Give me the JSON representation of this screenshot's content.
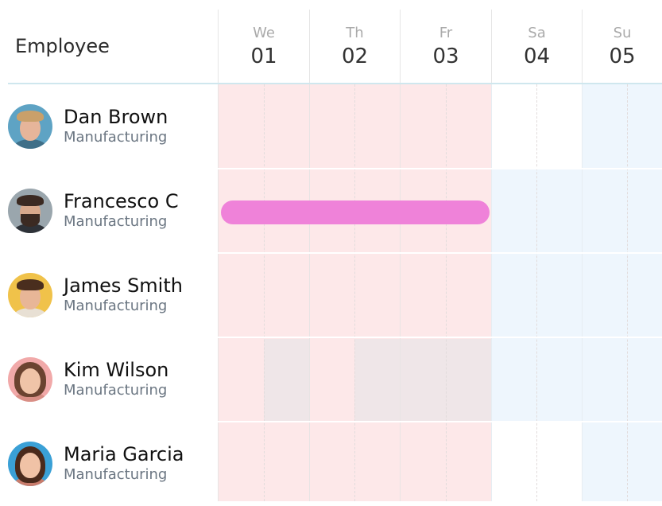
{
  "header": {
    "employee_label": "Employee"
  },
  "days": [
    {
      "abbr": "We",
      "num": "01",
      "weekend": false
    },
    {
      "abbr": "Th",
      "num": "02",
      "weekend": false
    },
    {
      "abbr": "Fr",
      "num": "03",
      "weekend": false
    },
    {
      "abbr": "Sa",
      "num": "04",
      "weekend": true
    },
    {
      "abbr": "Su",
      "num": "05",
      "weekend": true
    }
  ],
  "employees": [
    {
      "name": "Dan Brown",
      "department": "Manufacturing",
      "avatar": "avatar-dan-brown"
    },
    {
      "name": "Francesco C",
      "department": "Manufacturing",
      "avatar": "avatar-francesco-c"
    },
    {
      "name": "James Smith",
      "department": "Manufacturing",
      "avatar": "avatar-james-smith"
    },
    {
      "name": "Kim Wilson",
      "department": "Manufacturing",
      "avatar": "avatar-kim-wilson"
    },
    {
      "name": "Maria Garcia",
      "department": "Manufacturing",
      "avatar": "avatar-maria-garcia"
    }
  ],
  "event": {
    "employee": "Francesco C",
    "start_day": "01",
    "end_day": "03",
    "color": "#ef82d9"
  },
  "colors": {
    "weekday_bg": "#fde8e9",
    "weekend_bg": "#eef6fd",
    "highlight_bg": "#efe6e8",
    "header_line": "#cfe7ee"
  }
}
